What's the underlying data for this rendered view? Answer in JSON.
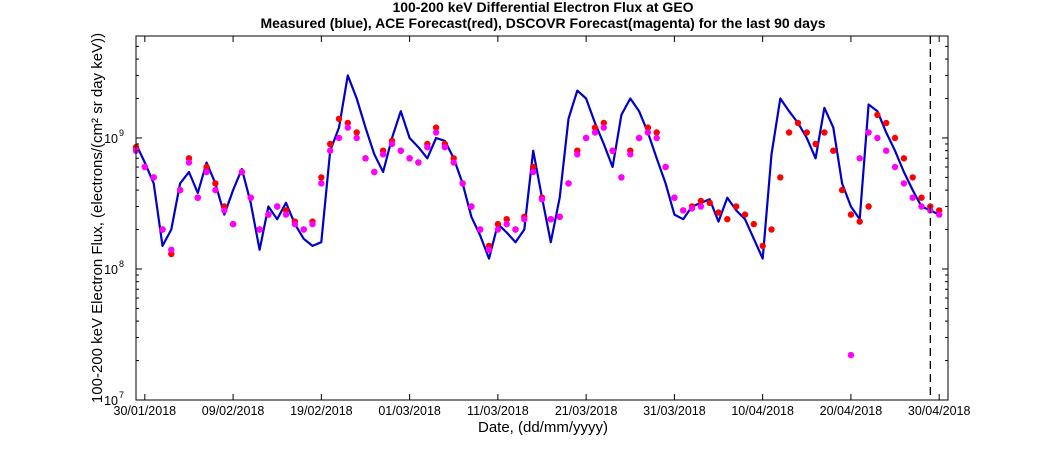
{
  "chart_data": {
    "type": "line",
    "title": "100-200 keV Differential Electron Flux at GEO",
    "subtitle": "Measured (blue), ACE Forecast(red), DSCOVR Forecast(magenta) for the last 90 days",
    "xlabel": "Date, (dd/mm/yyyy)",
    "ylabel": "100-200 keV Electron Flux, (electrons/(cm² sr day keV))",
    "y_scale": "log",
    "ylim": [
      10000000.0,
      6000000000.0
    ],
    "xlim": [
      "2018-01-29",
      "2018-05-01"
    ],
    "grid": false,
    "x_ticks": [
      "30/01/2018",
      "09/02/2018",
      "19/02/2018",
      "01/03/2018",
      "11/03/2018",
      "21/03/2018",
      "31/03/2018",
      "10/04/2018",
      "20/04/2018",
      "30/04/2018"
    ],
    "y_ticks": [
      {
        "base": "10",
        "exp": "7",
        "value": 10000000.0
      },
      {
        "base": "10",
        "exp": "8",
        "value": 100000000.0
      },
      {
        "base": "10",
        "exp": "9",
        "value": 1000000000.0
      }
    ],
    "vline_date": "2018-04-29",
    "colors": {
      "measured": "#0000cc",
      "ace": "#ff0000",
      "dscovr": "#ff00ff",
      "vline": "#000000"
    },
    "series": [
      {
        "key": "measured",
        "style": "line",
        "x": [
          "2018-01-29",
          "2018-01-30",
          "2018-01-31",
          "2018-02-01",
          "2018-02-02",
          "2018-02-03",
          "2018-02-04",
          "2018-02-05",
          "2018-02-06",
          "2018-02-07",
          "2018-02-08",
          "2018-02-09",
          "2018-02-10",
          "2018-02-11",
          "2018-02-12",
          "2018-02-13",
          "2018-02-14",
          "2018-02-15",
          "2018-02-16",
          "2018-02-17",
          "2018-02-18",
          "2018-02-19",
          "2018-02-20",
          "2018-02-21",
          "2018-02-22",
          "2018-02-23",
          "2018-02-24",
          "2018-02-25",
          "2018-02-26",
          "2018-02-27",
          "2018-02-28",
          "2018-03-01",
          "2018-03-02",
          "2018-03-03",
          "2018-03-04",
          "2018-03-05",
          "2018-03-06",
          "2018-03-07",
          "2018-03-08",
          "2018-03-09",
          "2018-03-10",
          "2018-03-11",
          "2018-03-12",
          "2018-03-13",
          "2018-03-14",
          "2018-03-15",
          "2018-03-16",
          "2018-03-17",
          "2018-03-18",
          "2018-03-19",
          "2018-03-20",
          "2018-03-21",
          "2018-03-22",
          "2018-03-23",
          "2018-03-24",
          "2018-03-25",
          "2018-03-26",
          "2018-03-27",
          "2018-03-28",
          "2018-03-29",
          "2018-03-30",
          "2018-03-31",
          "2018-04-01",
          "2018-04-02",
          "2018-04-03",
          "2018-04-04",
          "2018-04-05",
          "2018-04-06",
          "2018-04-07",
          "2018-04-08",
          "2018-04-09",
          "2018-04-10",
          "2018-04-11",
          "2018-04-12",
          "2018-04-13",
          "2018-04-14",
          "2018-04-15",
          "2018-04-16",
          "2018-04-17",
          "2018-04-18",
          "2018-04-19",
          "2018-04-20",
          "2018-04-21",
          "2018-04-22",
          "2018-04-23",
          "2018-04-24",
          "2018-04-25",
          "2018-04-26",
          "2018-04-27",
          "2018-04-28",
          "2018-04-29",
          "2018-04-30"
        ],
        "y": [
          900000000.0,
          650000000.0,
          450000000.0,
          150000000.0,
          200000000.0,
          450000000.0,
          550000000.0,
          380000000.0,
          650000000.0,
          450000000.0,
          260000000.0,
          400000000.0,
          580000000.0,
          320000000.0,
          140000000.0,
          300000000.0,
          240000000.0,
          320000000.0,
          220000000.0,
          170000000.0,
          150000000.0,
          160000000.0,
          800000000.0,
          1200000000.0,
          3000000000.0,
          2000000000.0,
          1200000000.0,
          750000000.0,
          550000000.0,
          1000000000.0,
          1600000000.0,
          1000000000.0,
          850000000.0,
          700000000.0,
          1000000000.0,
          950000000.0,
          700000000.0,
          450000000.0,
          250000000.0,
          180000000.0,
          120000000.0,
          220000000.0,
          190000000.0,
          160000000.0,
          200000000.0,
          800000000.0,
          350000000.0,
          160000000.0,
          350000000.0,
          1400000000.0,
          2300000000.0,
          2000000000.0,
          1300000000.0,
          900000000.0,
          600000000.0,
          1500000000.0,
          2000000000.0,
          1600000000.0,
          1100000000.0,
          700000000.0,
          450000000.0,
          260000000.0,
          240000000.0,
          300000000.0,
          320000000.0,
          340000000.0,
          230000000.0,
          350000000.0,
          280000000.0,
          240000000.0,
          170000000.0,
          120000000.0,
          750000000.0,
          2000000000.0,
          1600000000.0,
          1300000000.0,
          1000000000.0,
          700000000.0,
          1700000000.0,
          1200000000.0,
          450000000.0,
          300000000.0,
          240000000.0,
          1800000000.0,
          1600000000.0,
          1100000000.0,
          800000000.0,
          550000000.0,
          400000000.0,
          300000000.0,
          280000000.0,
          260000000.0
        ]
      },
      {
        "key": "ace",
        "style": "dots",
        "x": [
          "2018-01-29",
          "2018-01-30",
          "2018-01-31",
          "2018-02-01",
          "2018-02-02",
          "2018-02-03",
          "2018-02-04",
          "2018-02-05",
          "2018-02-06",
          "2018-02-07",
          "2018-02-08",
          "2018-02-09",
          "2018-02-10",
          "2018-02-11",
          "2018-02-12",
          "2018-02-13",
          "2018-02-14",
          "2018-02-15",
          "2018-02-16",
          "2018-02-17",
          "2018-02-18",
          "2018-02-19",
          "2018-02-20",
          "2018-02-21",
          "2018-02-22",
          "2018-02-23",
          "2018-02-24",
          "2018-02-25",
          "2018-02-26",
          "2018-02-27",
          "2018-02-28",
          "2018-03-01",
          "2018-03-02",
          "2018-03-03",
          "2018-03-04",
          "2018-03-05",
          "2018-03-06",
          "2018-03-07",
          "2018-03-08",
          "2018-03-09",
          "2018-03-10",
          "2018-03-11",
          "2018-03-12",
          "2018-03-13",
          "2018-03-14",
          "2018-03-15",
          "2018-03-16",
          "2018-03-17",
          "2018-03-18",
          "2018-03-19",
          "2018-03-20",
          "2018-03-21",
          "2018-03-22",
          "2018-03-23",
          "2018-03-24",
          "2018-03-25",
          "2018-03-26",
          "2018-03-27",
          "2018-03-28",
          "2018-03-29",
          "2018-03-30",
          "2018-03-31",
          "2018-04-01",
          "2018-04-02",
          "2018-04-03",
          "2018-04-04",
          "2018-04-05",
          "2018-04-06",
          "2018-04-07",
          "2018-04-08",
          "2018-04-09",
          "2018-04-10",
          "2018-04-11",
          "2018-04-12",
          "2018-04-13",
          "2018-04-14",
          "2018-04-15",
          "2018-04-16",
          "2018-04-17",
          "2018-04-18",
          "2018-04-19",
          "2018-04-20",
          "2018-04-21",
          "2018-04-22",
          "2018-04-23",
          "2018-04-24",
          "2018-04-25",
          "2018-04-26",
          "2018-04-27",
          "2018-04-28",
          "2018-04-29",
          "2018-04-30"
        ],
        "y": [
          850000000.0,
          600000000.0,
          500000000.0,
          200000000.0,
          130000000.0,
          400000000.0,
          700000000.0,
          350000000.0,
          600000000.0,
          450000000.0,
          300000000.0,
          220000000.0,
          550000000.0,
          350000000.0,
          200000000.0,
          260000000.0,
          300000000.0,
          280000000.0,
          230000000.0,
          200000000.0,
          230000000.0,
          500000000.0,
          900000000.0,
          1400000000.0,
          1300000000.0,
          1100000000.0,
          700000000.0,
          550000000.0,
          800000000.0,
          950000000.0,
          800000000.0,
          700000000.0,
          650000000.0,
          900000000.0,
          1200000000.0,
          900000000.0,
          700000000.0,
          450000000.0,
          300000000.0,
          200000000.0,
          150000000.0,
          220000000.0,
          240000000.0,
          200000000.0,
          250000000.0,
          600000000.0,
          350000000.0,
          240000000.0,
          250000000.0,
          450000000.0,
          800000000.0,
          1000000000.0,
          1200000000.0,
          1300000000.0,
          800000000.0,
          500000000.0,
          800000000.0,
          1000000000.0,
          1200000000.0,
          1100000000.0,
          600000000.0,
          350000000.0,
          280000000.0,
          300000000.0,
          330000000.0,
          320000000.0,
          270000000.0,
          240000000.0,
          300000000.0,
          260000000.0,
          220000000.0,
          150000000.0,
          200000000.0,
          500000000.0,
          1100000000.0,
          1300000000.0,
          1100000000.0,
          900000000.0,
          1100000000.0,
          800000000.0,
          400000000.0,
          260000000.0,
          230000000.0,
          300000000.0,
          1500000000.0,
          1300000000.0,
          1000000000.0,
          700000000.0,
          500000000.0,
          350000000.0,
          300000000.0,
          280000000.0
        ]
      },
      {
        "key": "dscovr",
        "style": "dots",
        "x": [
          "2018-01-29",
          "2018-01-30",
          "2018-01-31",
          "2018-02-01",
          "2018-02-02",
          "2018-02-03",
          "2018-02-04",
          "2018-02-05",
          "2018-02-06",
          "2018-02-07",
          "2018-02-08",
          "2018-02-09",
          "2018-02-10",
          "2018-02-11",
          "2018-02-12",
          "2018-02-13",
          "2018-02-14",
          "2018-02-15",
          "2018-02-16",
          "2018-02-17",
          "2018-02-18",
          "2018-02-19",
          "2018-02-20",
          "2018-02-21",
          "2018-02-22",
          "2018-02-23",
          "2018-02-24",
          "2018-02-25",
          "2018-02-26",
          "2018-02-27",
          "2018-02-28",
          "2018-03-01",
          "2018-03-02",
          "2018-03-03",
          "2018-03-04",
          "2018-03-05",
          "2018-03-06",
          "2018-03-07",
          "2018-03-08",
          "2018-03-09",
          "2018-03-10",
          "2018-03-11",
          "2018-03-12",
          "2018-03-13",
          "2018-03-14",
          "2018-03-15",
          "2018-03-16",
          "2018-03-17",
          "2018-03-18",
          "2018-03-19",
          "2018-03-20",
          "2018-03-21",
          "2018-03-22",
          "2018-03-23",
          "2018-03-24",
          "2018-03-25",
          "2018-03-26",
          "2018-03-27",
          "2018-03-28",
          "2018-03-29",
          "2018-03-30",
          "2018-03-31",
          "2018-04-01",
          "2018-04-02",
          "2018-04-03",
          "2018-04-20",
          "2018-04-21",
          "2018-04-22",
          "2018-04-23",
          "2018-04-24",
          "2018-04-25",
          "2018-04-26",
          "2018-04-27",
          "2018-04-28",
          "2018-04-29",
          "2018-04-30"
        ],
        "y": [
          800000000.0,
          600000000.0,
          500000000.0,
          200000000.0,
          140000000.0,
          400000000.0,
          650000000.0,
          350000000.0,
          550000000.0,
          400000000.0,
          280000000.0,
          220000000.0,
          550000000.0,
          350000000.0,
          200000000.0,
          260000000.0,
          300000000.0,
          260000000.0,
          220000000.0,
          200000000.0,
          220000000.0,
          450000000.0,
          800000000.0,
          1000000000.0,
          1200000000.0,
          1000000000.0,
          700000000.0,
          550000000.0,
          750000000.0,
          900000000.0,
          800000000.0,
          700000000.0,
          650000000.0,
          850000000.0,
          1100000000.0,
          850000000.0,
          650000000.0,
          450000000.0,
          300000000.0,
          200000000.0,
          140000000.0,
          200000000.0,
          220000000.0,
          200000000.0,
          240000000.0,
          550000000.0,
          340000000.0,
          240000000.0,
          250000000.0,
          450000000.0,
          750000000.0,
          1000000000.0,
          1100000000.0,
          1200000000.0,
          800000000.0,
          500000000.0,
          750000000.0,
          1000000000.0,
          1100000000.0,
          1000000000.0,
          600000000.0,
          350000000.0,
          280000000.0,
          290000000.0,
          300000000.0,
          22000000.0,
          700000000.0,
          1100000000.0,
          1000000000.0,
          800000000.0,
          600000000.0,
          450000000.0,
          350000000.0,
          300000000.0,
          280000000.0,
          260000000.0
        ]
      }
    ]
  }
}
